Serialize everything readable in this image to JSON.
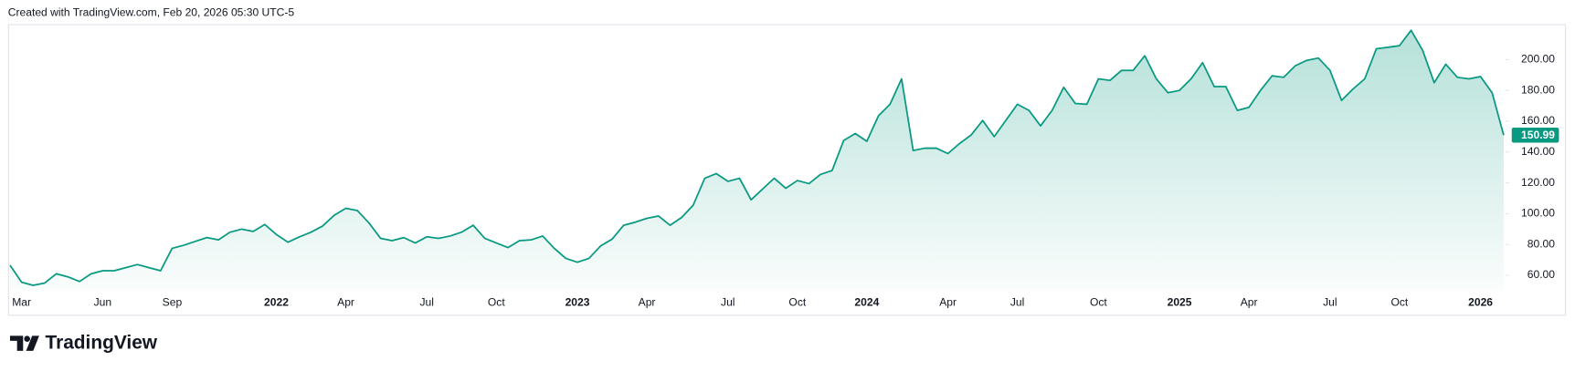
{
  "header": {
    "text": "Created with TradingView.com, Feb 20, 2026 05:30 UTC-5"
  },
  "chart_data": {
    "type": "area",
    "color": "#089981",
    "categories": [
      null,
      "Mar",
      null,
      null,
      null,
      null,
      null,
      null,
      "Jun",
      null,
      null,
      null,
      null,
      null,
      "Sep",
      null,
      null,
      null,
      null,
      null,
      null,
      null,
      null,
      "2022",
      null,
      null,
      null,
      null,
      null,
      "Apr",
      null,
      null,
      null,
      null,
      null,
      null,
      "Jul",
      null,
      null,
      null,
      null,
      null,
      "Oct",
      null,
      null,
      null,
      null,
      null,
      null,
      "2023",
      null,
      null,
      null,
      null,
      null,
      "Apr",
      null,
      null,
      null,
      null,
      null,
      null,
      "Jul",
      null,
      null,
      null,
      null,
      null,
      "Oct",
      null,
      null,
      null,
      null,
      null,
      "2024",
      null,
      null,
      null,
      null,
      null,
      null,
      "Apr",
      null,
      null,
      null,
      null,
      null,
      "Jul",
      null,
      null,
      null,
      null,
      null,
      null,
      "Oct",
      null,
      null,
      null,
      null,
      null,
      null,
      "2025",
      null,
      null,
      null,
      null,
      null,
      "Apr",
      null,
      null,
      null,
      null,
      null,
      null,
      "Jul",
      null,
      null,
      null,
      null,
      null,
      "Oct",
      null,
      null,
      null,
      null,
      null,
      null,
      "2026",
      null,
      null
    ],
    "values": [
      66.5,
      55.5,
      53.5,
      55,
      61,
      59,
      56,
      61,
      63,
      63,
      65,
      67,
      65,
      63,
      77.5,
      79.5,
      82,
      84.5,
      83,
      88,
      90,
      88.5,
      93,
      86.5,
      81.5,
      85,
      88,
      92,
      99,
      103.5,
      102,
      94,
      84,
      82.5,
      84.5,
      81,
      85,
      84,
      85.5,
      88,
      92.5,
      84,
      81,
      78,
      82.5,
      83,
      85.5,
      77.5,
      71,
      68.5,
      71,
      79,
      83.5,
      92.5,
      94.5,
      97,
      98.5,
      92.5,
      97.5,
      105.5,
      123,
      126,
      121,
      123,
      109,
      116,
      123,
      116.5,
      121.5,
      119.5,
      125.5,
      128,
      147.5,
      152,
      147,
      163.5,
      171,
      187.5,
      141,
      142.5,
      142.5,
      139,
      145.5,
      151,
      160.5,
      150,
      160.5,
      171,
      167,
      157,
      167,
      182,
      171.5,
      171,
      187.5,
      186.5,
      193,
      193,
      202.5,
      187.5,
      178.5,
      180,
      187.5,
      198,
      182.5,
      182.5,
      167,
      169,
      180,
      189.5,
      188.5,
      196,
      199.5,
      201,
      193,
      173.5,
      181,
      187.5,
      207,
      208,
      209,
      219,
      206,
      185,
      197,
      188.5,
      187.5,
      189,
      178.5,
      150.99
    ],
    "ylim": [
      50,
      223
    ],
    "yticks": [
      {
        "value": 60,
        "label": "60.00"
      },
      {
        "value": 80,
        "label": "80.00"
      },
      {
        "value": 100,
        "label": "100.00"
      },
      {
        "value": 120,
        "label": "120.00"
      },
      {
        "value": 140,
        "label": "140.00"
      },
      {
        "value": 160,
        "label": "160.00"
      },
      {
        "value": 180,
        "label": "180.00"
      },
      {
        "value": 200,
        "label": "200.00"
      }
    ],
    "grid": false
  },
  "logo": {
    "text": "TradingView"
  }
}
